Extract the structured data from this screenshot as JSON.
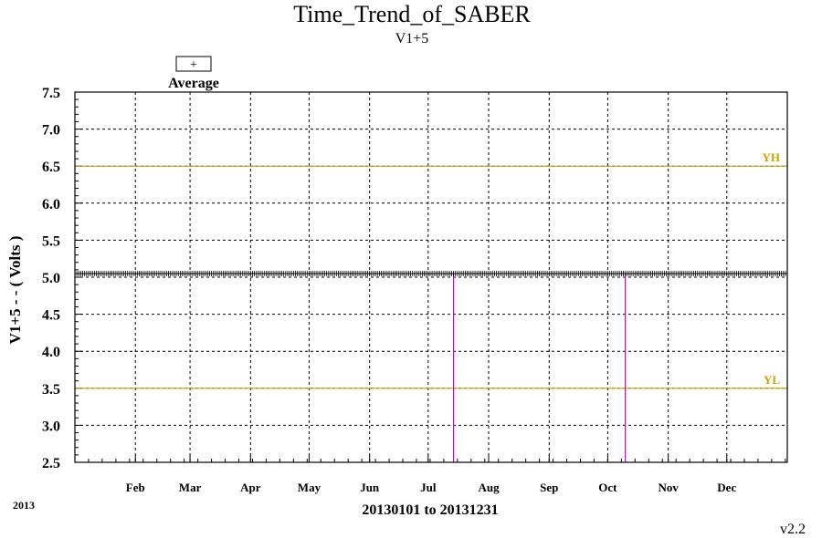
{
  "chart_data": {
    "type": "line",
    "title": "Time_Trend_of_SABER",
    "subtitle": "V1+5",
    "legend": {
      "marker": "+",
      "label": "Average",
      "placement": "top-left"
    },
    "ylabel": "V1+5  - - ( Volts )",
    "xlabel": "20130101 to 20131231",
    "year_label": "2013",
    "version": "v2.2",
    "ylim": [
      2.5,
      7.5
    ],
    "yticks": [
      "2.5",
      "3.0",
      "3.5",
      "4.0",
      "4.5",
      "5.0",
      "5.5",
      "6.0",
      "6.5",
      "7.0",
      "7.5"
    ],
    "x_domain_days": [
      0,
      365
    ],
    "month_ticks": [
      {
        "label": "Feb",
        "day": 31
      },
      {
        "label": "Mar",
        "day": 59
      },
      {
        "label": "Apr",
        "day": 90
      },
      {
        "label": "May",
        "day": 120
      },
      {
        "label": "Jun",
        "day": 151
      },
      {
        "label": "Jul",
        "day": 181
      },
      {
        "label": "Aug",
        "day": 212
      },
      {
        "label": "Sep",
        "day": 243
      },
      {
        "label": "Oct",
        "day": 273
      },
      {
        "label": "Nov",
        "day": 304
      },
      {
        "label": "Dec",
        "day": 334
      }
    ],
    "grid": true,
    "reference_lines": [
      {
        "label": "YH",
        "y": 6.5,
        "color": "#c8a400"
      },
      {
        "label": "YL",
        "y": 3.5,
        "color": "#c8a400"
      }
    ],
    "series": [
      {
        "name": "Average",
        "color": "#000000",
        "marker": "+",
        "y_constant": 5.05,
        "x_day_range": [
          0,
          365
        ]
      }
    ],
    "dropouts": [
      {
        "day": 194,
        "from": 5.05,
        "to": 2.5,
        "color": "#cc00cc"
      },
      {
        "day": 282,
        "from": 5.05,
        "to": 2.5,
        "color": "#cc00cc"
      }
    ]
  }
}
